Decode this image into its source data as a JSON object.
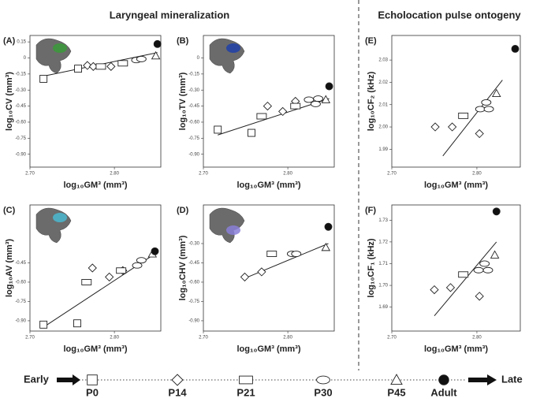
{
  "sections": [
    "Laryngeal mineralization",
    "Echolocation pulse ontogeny"
  ],
  "chart_data": [
    {
      "type": "scatter",
      "label": "(A)",
      "x_label": "log₁₀GM³ (mm³)",
      "y_label": "log₁₀CV (mm³)",
      "xlim": [
        2.7,
        2.855
      ],
      "ylim": [
        -1.02,
        0.21
      ],
      "xticks": [
        {
          "value": 2.7,
          "label": "2.70"
        },
        {
          "value": 2.8,
          "label": "2.80"
        }
      ],
      "yticks": [
        0.15,
        0,
        -0.15,
        {
          "value": -0.3,
          "label": "-0.30"
        },
        -0.45,
        {
          "value": -0.6,
          "label": "-0.60"
        },
        -0.75,
        {
          "value": -0.9,
          "label": "-0.90"
        }
      ],
      "series": [
        {
          "name": "P0",
          "marker": "square",
          "x": [
            2.716,
            2.757
          ],
          "values": [
            -0.195,
            -0.1
          ]
        },
        {
          "name": "P14",
          "marker": "diamond",
          "x": [
            2.768,
            2.775,
            2.796
          ],
          "values": [
            -0.07,
            -0.08,
            -0.08
          ]
        },
        {
          "name": "P21",
          "marker": "rect",
          "x": [
            2.784,
            2.81
          ],
          "values": [
            -0.08,
            -0.05
          ]
        },
        {
          "name": "P30",
          "marker": "ellipse",
          "x": [
            2.826,
            2.832
          ],
          "values": [
            -0.02,
            -0.01
          ]
        },
        {
          "name": "P45",
          "marker": "triangle",
          "x": [
            2.849
          ],
          "values": [
            0.02
          ]
        },
        {
          "name": "Adult",
          "marker": "circle",
          "x": [
            2.851
          ],
          "values": [
            0.13
          ]
        }
      ],
      "fit": {
        "x": [
          2.716,
          2.851
        ],
        "values": [
          -0.17,
          0.05
        ]
      }
    },
    {
      "type": "scatter",
      "label": "(B)",
      "x_label": "log₁₀GM³ (mm³)",
      "y_label": "log₁₀TV (mm³)",
      "xlim": [
        2.7,
        2.855
      ],
      "ylim": [
        -1.02,
        0.21
      ],
      "xticks": [
        {
          "value": 2.7,
          "label": "2.70"
        },
        {
          "value": 2.8,
          "label": "2.80"
        }
      ],
      "yticks": [
        0,
        -0.15,
        {
          "value": -0.3,
          "label": "-0.30"
        },
        -0.45,
        {
          "value": -0.6,
          "label": "-0.60"
        },
        -0.75,
        {
          "value": -0.9,
          "label": "-0.90"
        }
      ],
      "series": [
        {
          "name": "P0",
          "marker": "square",
          "x": [
            2.717,
            2.757
          ],
          "values": [
            -0.67,
            -0.7
          ]
        },
        {
          "name": "P14",
          "marker": "diamond",
          "x": [
            2.776,
            2.794,
            2.809
          ],
          "values": [
            -0.45,
            -0.5,
            -0.405
          ]
        },
        {
          "name": "P21",
          "marker": "rect",
          "x": [
            2.769,
            2.809
          ],
          "values": [
            -0.545,
            -0.45
          ]
        },
        {
          "name": "P30",
          "marker": "ellipse",
          "x": [
            2.825,
            2.833,
            2.836
          ],
          "values": [
            -0.39,
            -0.43,
            -0.38
          ]
        },
        {
          "name": "P45",
          "marker": "triangle",
          "x": [
            2.845
          ],
          "values": [
            -0.39
          ]
        },
        {
          "name": "Adult",
          "marker": "circle",
          "x": [
            2.849
          ],
          "values": [
            -0.265
          ]
        }
      ],
      "fit": {
        "x": [
          2.717,
          2.849
        ],
        "values": [
          -0.72,
          -0.38
        ]
      }
    },
    {
      "type": "scatter",
      "label": "(C)",
      "x_label": "log₁₀GM³ (mm³)",
      "y_label": "log₁₀AV (mm³)",
      "xlim": [
        2.7,
        2.855
      ],
      "ylim": [
        -0.98,
        0.0
      ],
      "xticks": [
        {
          "value": 2.7,
          "label": "2.70"
        },
        {
          "value": 2.8,
          "label": "2.80"
        }
      ],
      "yticks": [
        -0.45,
        {
          "value": -0.6,
          "label": "-0.60"
        },
        -0.75,
        {
          "value": -0.9,
          "label": "-0.90"
        }
      ],
      "series": [
        {
          "name": "P0",
          "marker": "square",
          "x": [
            2.716,
            2.756
          ],
          "values": [
            -0.93,
            -0.92
          ]
        },
        {
          "name": "P14",
          "marker": "diamond",
          "x": [
            2.774,
            2.794,
            2.81
          ],
          "values": [
            -0.49,
            -0.56,
            -0.51
          ]
        },
        {
          "name": "P21",
          "marker": "rect",
          "x": [
            2.767,
            2.808
          ],
          "values": [
            -0.6,
            -0.51
          ]
        },
        {
          "name": "P30",
          "marker": "ellipse",
          "x": [
            2.827,
            2.832
          ],
          "values": [
            -0.47,
            -0.43
          ]
        },
        {
          "name": "P45",
          "marker": "triangle",
          "x": [
            2.845
          ],
          "values": [
            -0.38
          ]
        },
        {
          "name": "Adult",
          "marker": "circle",
          "x": [
            2.848
          ],
          "values": [
            -0.36
          ]
        }
      ],
      "fit": {
        "x": [
          2.716,
          2.848
        ],
        "values": [
          -0.95,
          -0.38
        ]
      }
    },
    {
      "type": "scatter",
      "label": "(D)",
      "x_label": "log₁₀GM³ (mm³)",
      "y_label": "log₁₀CHV (mm³)",
      "xlim": [
        2.7,
        2.855
      ],
      "ylim": [
        -0.98,
        0.0
      ],
      "xticks": [
        {
          "value": 2.7,
          "label": "2.70"
        },
        {
          "value": 2.8,
          "label": "2.80"
        }
      ],
      "yticks": [
        {
          "value": -0.3,
          "label": "-0.30"
        },
        -0.45,
        {
          "value": -0.6,
          "label": "-0.60"
        },
        -0.75,
        {
          "value": -0.9,
          "label": "-0.90"
        }
      ],
      "series": [
        {
          "name": "P14",
          "marker": "diamond",
          "x": [
            2.749,
            2.769
          ],
          "values": [
            -0.56,
            -0.52
          ]
        },
        {
          "name": "P21",
          "marker": "rect",
          "x": [
            2.781
          ],
          "values": [
            -0.38
          ]
        },
        {
          "name": "P30",
          "marker": "ellipse",
          "x": [
            2.805,
            2.81
          ],
          "values": [
            -0.38,
            -0.38
          ]
        },
        {
          "name": "P45",
          "marker": "triangle",
          "x": [
            2.845
          ],
          "values": [
            -0.33
          ]
        },
        {
          "name": "Adult",
          "marker": "circle",
          "x": [
            2.848
          ],
          "values": [
            -0.17
          ]
        }
      ],
      "fit": {
        "x": [
          2.749,
          2.848
        ],
        "values": [
          -0.57,
          -0.3
        ]
      }
    },
    {
      "type": "scatter",
      "label": "(E)",
      "x_label": "log₁₀GM³ (mm³)",
      "y_label": "log₁₀CF₂ (kHz)",
      "xlim": [
        2.7,
        2.851
      ],
      "ylim": [
        1.982,
        2.041
      ],
      "xticks": [
        {
          "value": 2.7,
          "label": "2.70"
        },
        {
          "value": 2.8,
          "label": "2.80"
        }
      ],
      "yticks": [
        1.99,
        {
          "value": 2.0,
          "label": "2.00"
        },
        2.01,
        2.02,
        2.03
      ],
      "series": [
        {
          "name": "P14",
          "marker": "diamond",
          "x": [
            2.751,
            2.771,
            2.803
          ],
          "values": [
            2.0,
            2.0,
            1.997
          ]
        },
        {
          "name": "P21",
          "marker": "rect",
          "x": [
            2.784
          ],
          "values": [
            2.005
          ]
        },
        {
          "name": "P30",
          "marker": "ellipse",
          "x": [
            2.804,
            2.811,
            2.814
          ],
          "values": [
            2.008,
            2.011,
            2.008
          ]
        },
        {
          "name": "P45",
          "marker": "triangle",
          "x": [
            2.823
          ],
          "values": [
            2.015
          ]
        },
        {
          "name": "Adult",
          "marker": "circle",
          "x": [
            2.845
          ],
          "values": [
            2.035
          ]
        }
      ],
      "fit": {
        "x": [
          2.76,
          2.83
        ],
        "values": [
          1.987,
          2.021
        ]
      }
    },
    {
      "type": "scatter",
      "label": "(F)",
      "x_label": "log₁₀GM³ (mm³)",
      "y_label": "log₁₀CF₁ (kHz)",
      "xlim": [
        2.7,
        2.851
      ],
      "ylim": [
        1.679,
        1.737
      ],
      "xticks": [
        {
          "value": 2.7,
          "label": "2.70"
        },
        {
          "value": 2.8,
          "label": "2.80"
        }
      ],
      "yticks": [
        1.69,
        {
          "value": 1.7,
          "label": "1.70"
        },
        1.71,
        1.72,
        1.73
      ],
      "series": [
        {
          "name": "P14",
          "marker": "diamond",
          "x": [
            2.75,
            2.769,
            2.803
          ],
          "values": [
            1.698,
            1.699,
            1.695
          ]
        },
        {
          "name": "P21",
          "marker": "rect",
          "x": [
            2.784
          ],
          "values": [
            1.705
          ]
        },
        {
          "name": "P30",
          "marker": "ellipse",
          "x": [
            2.802,
            2.809,
            2.813
          ],
          "values": [
            1.707,
            1.71,
            1.707
          ]
        },
        {
          "name": "P45",
          "marker": "triangle",
          "x": [
            2.821
          ],
          "values": [
            1.714
          ]
        },
        {
          "name": "Adult",
          "marker": "circle",
          "x": [
            2.823
          ],
          "values": [
            1.734
          ]
        }
      ],
      "fit": {
        "x": [
          2.75,
          2.823
        ],
        "values": [
          1.686,
          1.72
        ]
      }
    }
  ],
  "legend": {
    "start": "Early",
    "end": "Late",
    "stages": [
      {
        "name": "P0",
        "marker": "square"
      },
      {
        "name": "P14",
        "marker": "diamond"
      },
      {
        "name": "P21",
        "marker": "rect"
      },
      {
        "name": "P30",
        "marker": "ellipse"
      },
      {
        "name": "P45",
        "marker": "triangle"
      },
      {
        "name": "Adult",
        "marker": "circle"
      }
    ]
  }
}
